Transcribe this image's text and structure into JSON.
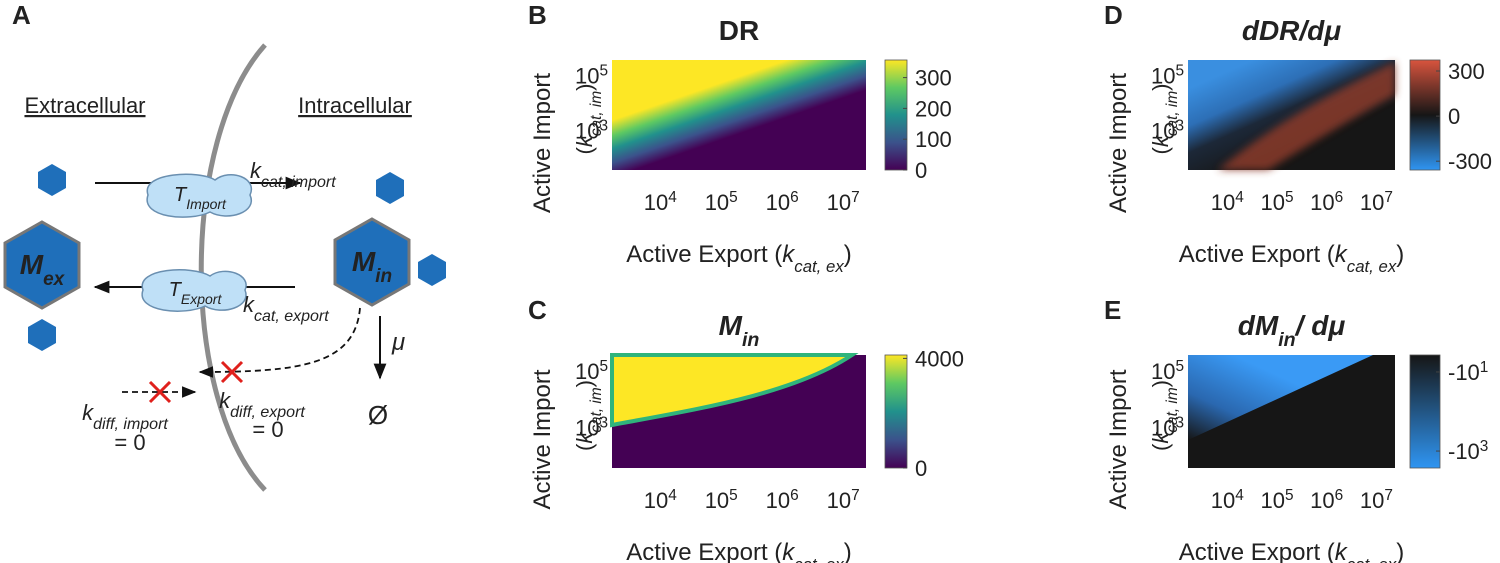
{
  "panel_a": {
    "letter": "A",
    "extracellular": "Extracellular",
    "intracellular": "Intracellular",
    "m_ex": {
      "main": "M",
      "sub": "ex"
    },
    "m_in": {
      "main": "M",
      "sub": "in"
    },
    "t_import": {
      "main": "T",
      "sub": "Import"
    },
    "t_export": {
      "main": "T",
      "sub": "Export"
    },
    "k_import": {
      "main": "k",
      "sub": "cat, import"
    },
    "k_export": {
      "main": "k",
      "sub": "cat, export"
    },
    "mu": "μ",
    "null_set": "Ø",
    "k_diff_import": {
      "main": "k",
      "sub": "diff, import",
      "value": "= 0"
    },
    "k_diff_export": {
      "main": "k",
      "sub": "diff, export",
      "value": "= 0"
    }
  },
  "heatmaps": [
    {
      "letter": "B",
      "title": [
        {
          "text": "DR"
        }
      ],
      "ylabel": "Active Import",
      "ylabel_sym": [
        {
          "text": "("
        },
        {
          "text": "k",
          "italic": true
        },
        {
          "text": "cat, im",
          "sub": true,
          "italic": true
        },
        {
          "text": ")"
        }
      ],
      "xlabel": [
        {
          "text": "Active Export ("
        },
        {
          "text": "k",
          "italic": true
        },
        {
          "text": "cat, ex",
          "sub": true,
          "italic": true
        },
        {
          "text": ")"
        }
      ],
      "yticks": [
        {
          "base": "10",
          "exp": "5"
        },
        {
          "base": "10",
          "exp": "3"
        }
      ],
      "xticks": [
        {
          "base": "10",
          "exp": "4"
        },
        {
          "base": "10",
          "exp": "5"
        },
        {
          "base": "10",
          "exp": "6"
        },
        {
          "base": "10",
          "exp": "7"
        }
      ],
      "colorbar_ticks": [
        300,
        200,
        100,
        0
      ]
    },
    {
      "letter": "C",
      "title": [
        {
          "text": "M",
          "italic": true
        },
        {
          "text": "in",
          "sub": true,
          "italic": true
        }
      ],
      "ylabel": "Active Import",
      "ylabel_sym": [
        {
          "text": "("
        },
        {
          "text": "k",
          "italic": true
        },
        {
          "text": "cat, im",
          "sub": true,
          "italic": true
        },
        {
          "text": ")"
        }
      ],
      "xlabel": [
        {
          "text": "Active Export ("
        },
        {
          "text": "k",
          "italic": true
        },
        {
          "text": "cat, ex",
          "sub": true,
          "italic": true
        },
        {
          "text": ")"
        }
      ],
      "yticks": [
        {
          "base": "10",
          "exp": "5"
        },
        {
          "base": "10",
          "exp": "3"
        }
      ],
      "xticks": [
        {
          "base": "10",
          "exp": "4"
        },
        {
          "base": "10",
          "exp": "5"
        },
        {
          "base": "10",
          "exp": "6"
        },
        {
          "base": "10",
          "exp": "7"
        }
      ],
      "colorbar_ticks": [
        4000,
        0
      ]
    },
    {
      "letter": "D",
      "title": [
        {
          "text": "dDR/dμ",
          "italic": true
        }
      ],
      "ylabel": "Active Import",
      "ylabel_sym": [
        {
          "text": "("
        },
        {
          "text": "k",
          "italic": true
        },
        {
          "text": "cat, im",
          "sub": true,
          "italic": true
        },
        {
          "text": ")"
        }
      ],
      "xlabel": [
        {
          "text": "Active Export ("
        },
        {
          "text": "k",
          "italic": true
        },
        {
          "text": "cat, ex",
          "sub": true,
          "italic": true
        },
        {
          "text": ")"
        }
      ],
      "yticks": [
        {
          "base": "10",
          "exp": "5"
        },
        {
          "base": "10",
          "exp": "3"
        }
      ],
      "xticks": [
        {
          "base": "10",
          "exp": "4"
        },
        {
          "base": "10",
          "exp": "5"
        },
        {
          "base": "10",
          "exp": "6"
        },
        {
          "base": "10",
          "exp": "7"
        }
      ],
      "colorbar_ticks": [
        300,
        0,
        -300
      ]
    },
    {
      "letter": "E",
      "title": [
        {
          "text": "dM",
          "italic": true
        },
        {
          "text": "in",
          "sub": true,
          "italic": true
        },
        {
          "text": "/ dμ",
          "italic": true
        }
      ],
      "ylabel": "Active Import",
      "ylabel_sym": [
        {
          "text": "("
        },
        {
          "text": "k",
          "italic": true
        },
        {
          "text": "cat, im",
          "sub": true,
          "italic": true
        },
        {
          "text": ")"
        }
      ],
      "xlabel": [
        {
          "text": "Active Export ("
        },
        {
          "text": "k",
          "italic": true
        },
        {
          "text": "cat, ex",
          "sub": true,
          "italic": true
        },
        {
          "text": ")"
        }
      ],
      "yticks": [
        {
          "base": "10",
          "exp": "5"
        },
        {
          "base": "10",
          "exp": "3"
        }
      ],
      "xticks": [
        {
          "base": "10",
          "exp": "4"
        },
        {
          "base": "10",
          "exp": "5"
        },
        {
          "base": "10",
          "exp": "6"
        },
        {
          "base": "10",
          "exp": "7"
        }
      ],
      "colorbar_ticks": [
        {
          "base": "-10",
          "exp": "1"
        },
        {
          "base": "-10",
          "exp": "3"
        }
      ]
    }
  ]
}
